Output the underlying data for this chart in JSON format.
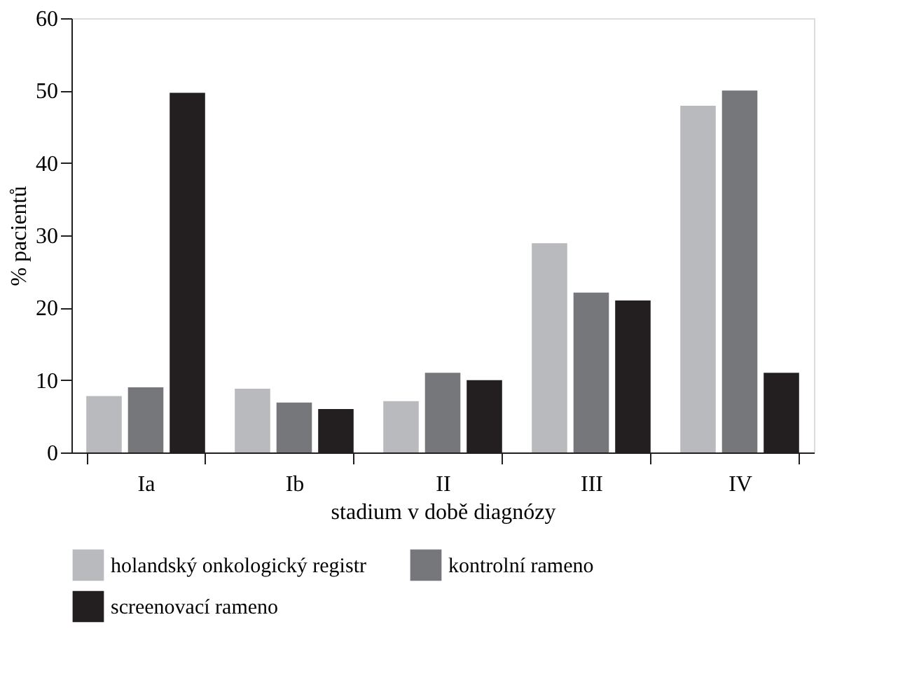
{
  "chart_data": {
    "type": "bar",
    "xlabel": "stadium v době diagnózy",
    "ylabel": "% pacientů",
    "categories": [
      "Ia",
      "Ib",
      "II",
      "III",
      "IV"
    ],
    "series": [
      {
        "name": "holandský onkologický registr",
        "color": "#b9babd",
        "values": [
          7.8,
          8.8,
          7.1,
          28.9,
          47.9
        ]
      },
      {
        "name": "kontrolní rameno",
        "color": "#76777b",
        "values": [
          9,
          6.9,
          11,
          22.1,
          50
        ]
      },
      {
        "name": "screenovací rameno",
        "color": "#231f20",
        "values": [
          49.7,
          6,
          10,
          21,
          11
        ]
      }
    ],
    "ylim": [
      0,
      60
    ],
    "yticks": [
      0,
      10,
      20,
      30,
      40,
      50,
      60
    ],
    "grid": false,
    "legend": "bottom"
  }
}
